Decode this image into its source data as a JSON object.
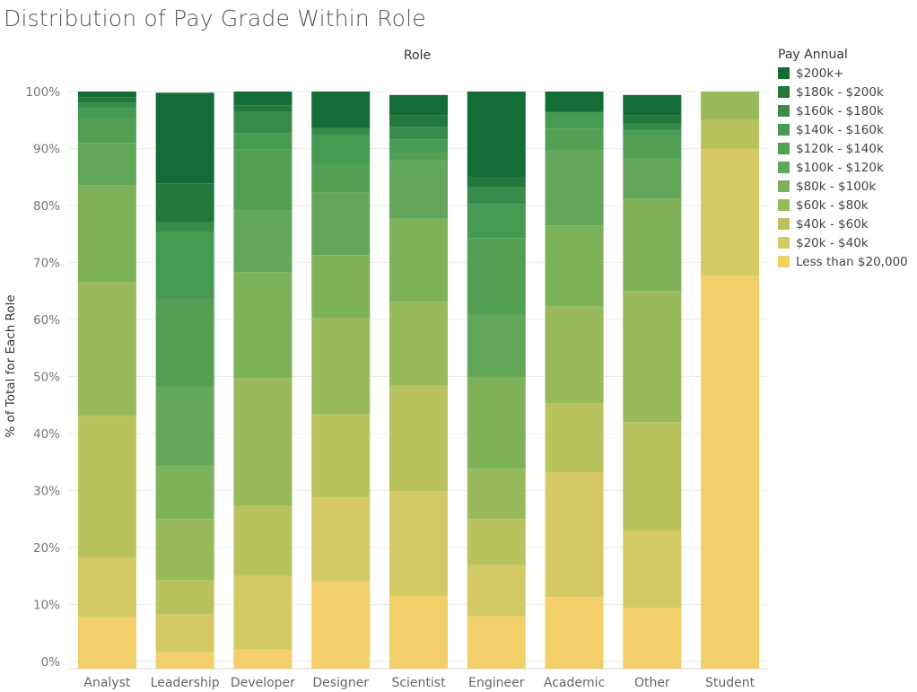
{
  "page_title": "Distribution of Pay Grade Within Role",
  "legend": {
    "title": "Pay Annual",
    "items": [
      {
        "label": "$200k+",
        "color": "#146c36"
      },
      {
        "label": "$180k - $200k",
        "color": "#23763c"
      },
      {
        "label": "$160k - $180k",
        "color": "#388b4b"
      },
      {
        "label": "$140k - $160k",
        "color": "#469a52"
      },
      {
        "label": "$120k - $140k",
        "color": "#53a055"
      },
      {
        "label": "$100k - $120k",
        "color": "#63a85a"
      },
      {
        "label": "$80k - $100k",
        "color": "#7db25a"
      },
      {
        "label": "$60k - $80k",
        "color": "#99ba5a"
      },
      {
        "label": "$40k - $60k",
        "color": "#b8c35e"
      },
      {
        "label": "$20k - $40k",
        "color": "#d4c964"
      },
      {
        "label": "Less than $20,000",
        "color": "#f2cf68"
      }
    ]
  },
  "chart_data": {
    "type": "bar",
    "stacked": true,
    "normalized": true,
    "title": "Distribution of Pay Grade Within Role",
    "column_header": "Role",
    "ylabel": "% of Total for Each Role",
    "xlabel": "",
    "ylim": [
      0,
      100
    ],
    "yticks": [
      "0%",
      "10%",
      "20%",
      "30%",
      "40%",
      "50%",
      "60%",
      "70%",
      "80%",
      "90%",
      "100%"
    ],
    "grid": true,
    "legend_position": "right",
    "categories": [
      "Analyst",
      "Leadership",
      "Developer",
      "Designer",
      "Scientist",
      "Engineer",
      "Academic",
      "Other",
      "Student"
    ],
    "series": [
      {
        "name": "Less than $20,000",
        "values": [
          7.8,
          1.6,
          2.1,
          14.0,
          11.5,
          7.9,
          11.3,
          9.4,
          67.7
        ]
      },
      {
        "name": "$20k - $40k",
        "values": [
          10.4,
          6.7,
          12.9,
          14.8,
          18.4,
          9.0,
          21.9,
          13.6,
          22.3
        ]
      },
      {
        "name": "$40k - $60k",
        "values": [
          24.9,
          6.0,
          12.4,
          14.6,
          18.5,
          8.1,
          12.1,
          19.0,
          5.0
        ]
      },
      {
        "name": "$60k - $80k",
        "values": [
          23.5,
          10.7,
          22.3,
          16.9,
          14.7,
          8.8,
          17.0,
          23.0,
          5.0
        ]
      },
      {
        "name": "$80k - $100k",
        "values": [
          16.9,
          9.4,
          18.6,
          11.0,
          14.6,
          16.2,
          14.2,
          16.2,
          0
        ]
      },
      {
        "name": "$100k - $120k",
        "values": [
          7.5,
          13.8,
          10.8,
          11.0,
          10.2,
          10.8,
          13.2,
          7.0,
          0
        ]
      },
      {
        "name": "$120k - $140k",
        "values": [
          4.2,
          15.5,
          10.8,
          5.1,
          1.3,
          13.5,
          3.8,
          4.0,
          0
        ]
      },
      {
        "name": "$140k - $160k",
        "values": [
          1.9,
          11.6,
          2.8,
          4.9,
          2.4,
          6.0,
          2.9,
          1.0,
          0
        ]
      },
      {
        "name": "$160k - $180k",
        "values": [
          1.0,
          1.8,
          3.7,
          1.3,
          2.2,
          2.9,
          0,
          1.2,
          0
        ]
      },
      {
        "name": "$180k - $200k",
        "values": [
          0.9,
          6.8,
          1.2,
          0,
          2.0,
          1.7,
          0,
          1.4,
          0
        ]
      },
      {
        "name": "$200k+",
        "values": [
          1.0,
          15.9,
          2.4,
          6.4,
          3.6,
          15.1,
          3.6,
          3.6,
          0
        ]
      }
    ]
  }
}
